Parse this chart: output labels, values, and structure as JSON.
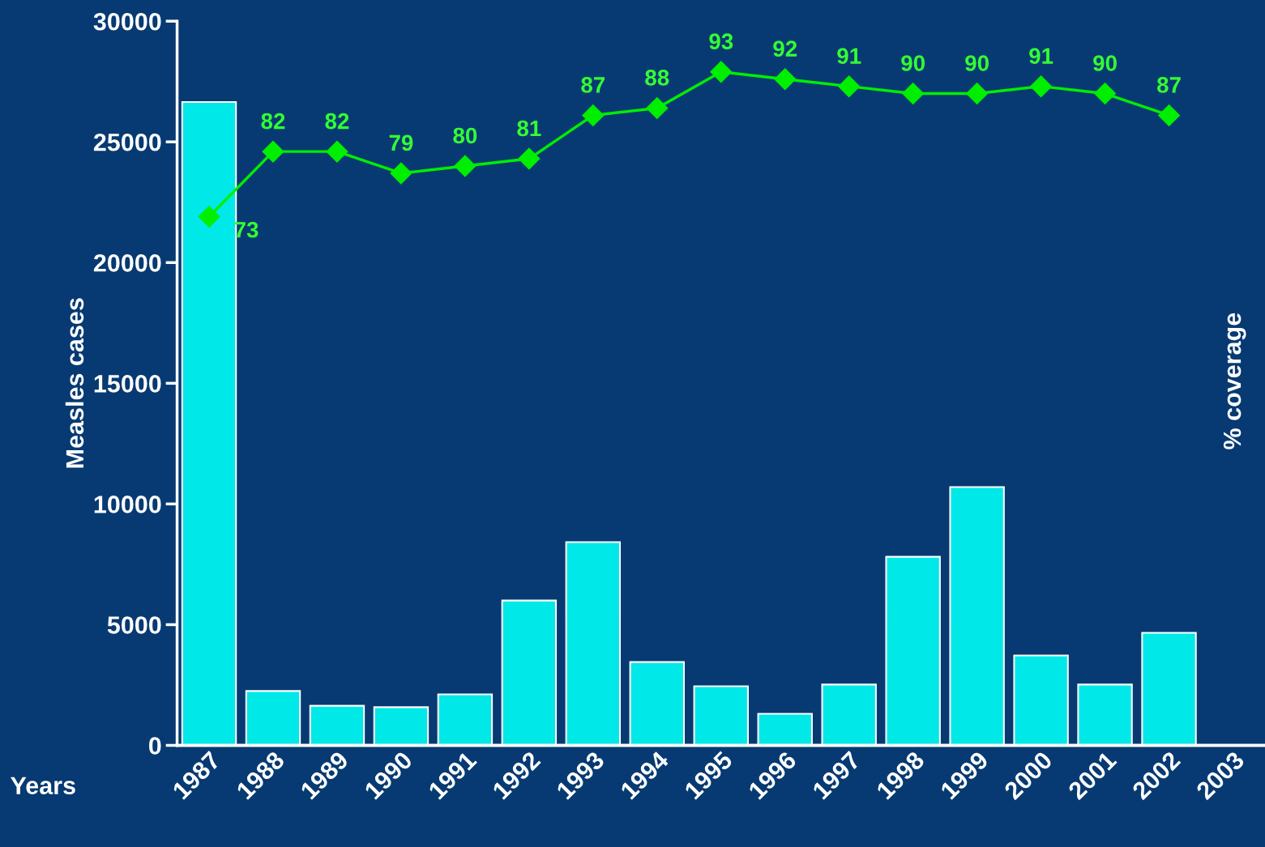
{
  "chart_data": {
    "type": "bar",
    "xlabel": "Years",
    "ylabel": "Measles cases",
    "y2label": "% coverage",
    "categories": [
      "1987",
      "1988",
      "1989",
      "1990",
      "1991",
      "1992",
      "1993",
      "1994",
      "1995",
      "1996",
      "1997",
      "1998",
      "1999",
      "2000",
      "2001",
      "2002",
      "2003"
    ],
    "ylim": [
      0,
      30000
    ],
    "yticks": [
      0,
      5000,
      10000,
      15000,
      20000,
      25000,
      30000
    ],
    "y2lim": [
      0,
      100
    ],
    "tick_labels": [
      "x",
      "y"
    ],
    "series": [
      {
        "color": "#00e8e8",
        "values": [
          26650,
          2250,
          1640,
          1580,
          2110,
          6000,
          8420,
          3450,
          2450,
          1310,
          2520,
          7810,
          10700,
          3720,
          2520,
          4660,
          null
        ]
      },
      {
        "type": "line",
        "axis": "y2",
        "color": "#00ee00",
        "marker": "diamond",
        "data_labels": true,
        "values": [
          73,
          82,
          82,
          79,
          80,
          81,
          87,
          88,
          93,
          92,
          91,
          90,
          90,
          91,
          90,
          87,
          null
        ]
      }
    ],
    "grid": false,
    "legend": false
  }
}
